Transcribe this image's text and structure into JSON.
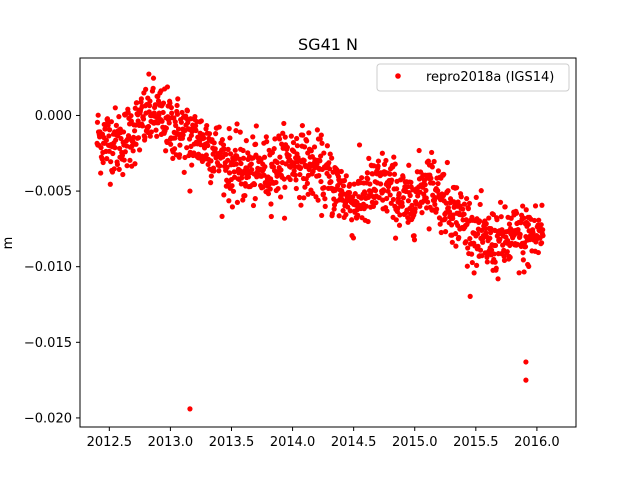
{
  "chart_data": {
    "type": "scatter",
    "title": "SG41 N",
    "xlabel": "",
    "ylabel": "m",
    "xlim": [
      2012.26,
      2016.32
    ],
    "ylim": [
      -0.0206,
      0.0038
    ],
    "xticks": [
      2012.5,
      2013.0,
      2013.5,
      2014.0,
      2014.5,
      2015.0,
      2015.5,
      2016.0
    ],
    "xtick_labels": [
      "2012.5",
      "2013.0",
      "2013.5",
      "2014.0",
      "2014.5",
      "2015.0",
      "2015.5",
      "2016.0"
    ],
    "yticks": [
      0.0,
      -0.005,
      -0.01,
      -0.015,
      -0.02
    ],
    "ytick_labels": [
      "0.000",
      "−0.005",
      "−0.010",
      "−0.015",
      "−0.020"
    ],
    "grid": false,
    "legend_position": "top-right",
    "series": [
      {
        "name": "repro2018a (IGS14)",
        "color": "#ff0000",
        "marker": "circle",
        "trend": [
          [
            2012.4,
            -0.0015
          ],
          [
            2012.6,
            -0.0018
          ],
          [
            2012.85,
            0.0002
          ],
          [
            2013.1,
            -0.0012
          ],
          [
            2013.3,
            -0.0018
          ],
          [
            2013.5,
            -0.0035
          ],
          [
            2013.75,
            -0.0038
          ],
          [
            2014.0,
            -0.0028
          ],
          [
            2014.2,
            -0.0035
          ],
          [
            2014.5,
            -0.0058
          ],
          [
            2014.75,
            -0.0045
          ],
          [
            2014.95,
            -0.006
          ],
          [
            2015.1,
            -0.0042
          ],
          [
            2015.35,
            -0.0065
          ],
          [
            2015.55,
            -0.0085
          ],
          [
            2015.8,
            -0.0082
          ],
          [
            2016.05,
            -0.0078
          ]
        ],
        "scatter_std": 0.0011,
        "n_points": 1250,
        "outliers": [
          [
            2013.16,
            -0.0194
          ],
          [
            2015.91,
            -0.0163
          ],
          [
            2015.91,
            -0.0175
          ],
          [
            2013.16,
            -0.005
          ]
        ]
      }
    ]
  }
}
